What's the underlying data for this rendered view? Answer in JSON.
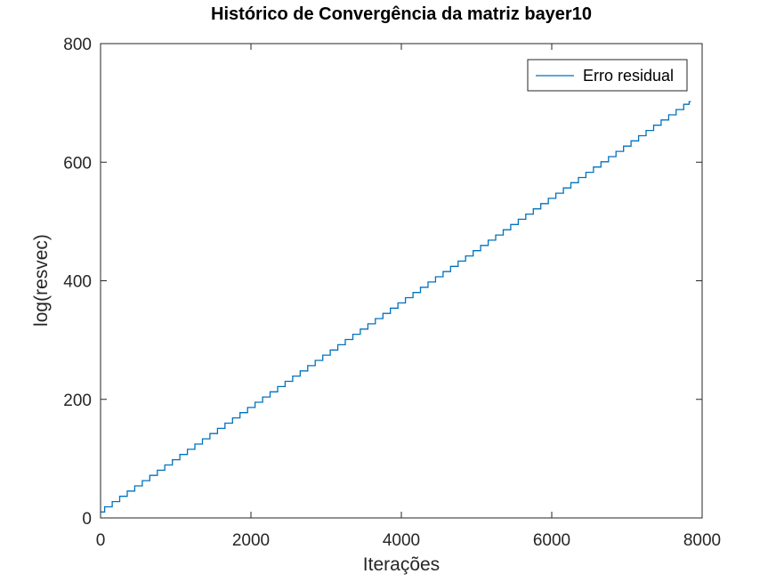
{
  "chart_data": {
    "type": "line",
    "title": "Histórico de Convergência da matriz bayer10",
    "xlabel": "Iterações",
    "ylabel": "log(resvec)",
    "xlim": [
      0,
      8000
    ],
    "ylim": [
      0,
      800
    ],
    "xticks": [
      0,
      2000,
      4000,
      6000,
      8000
    ],
    "yticks": [
      0,
      200,
      400,
      600,
      800
    ],
    "xtick_labels": [
      "0",
      "2000",
      "4000",
      "6000",
      "8000"
    ],
    "ytick_labels": [
      "0",
      "200",
      "400",
      "600",
      "800"
    ],
    "grid": false,
    "legend_position": "top-right",
    "series": [
      {
        "name": "Erro residual",
        "color": "#0072bd",
        "style": "staircase",
        "x": [
          0,
          7850
        ],
        "y": [
          10,
          702
        ]
      }
    ]
  }
}
